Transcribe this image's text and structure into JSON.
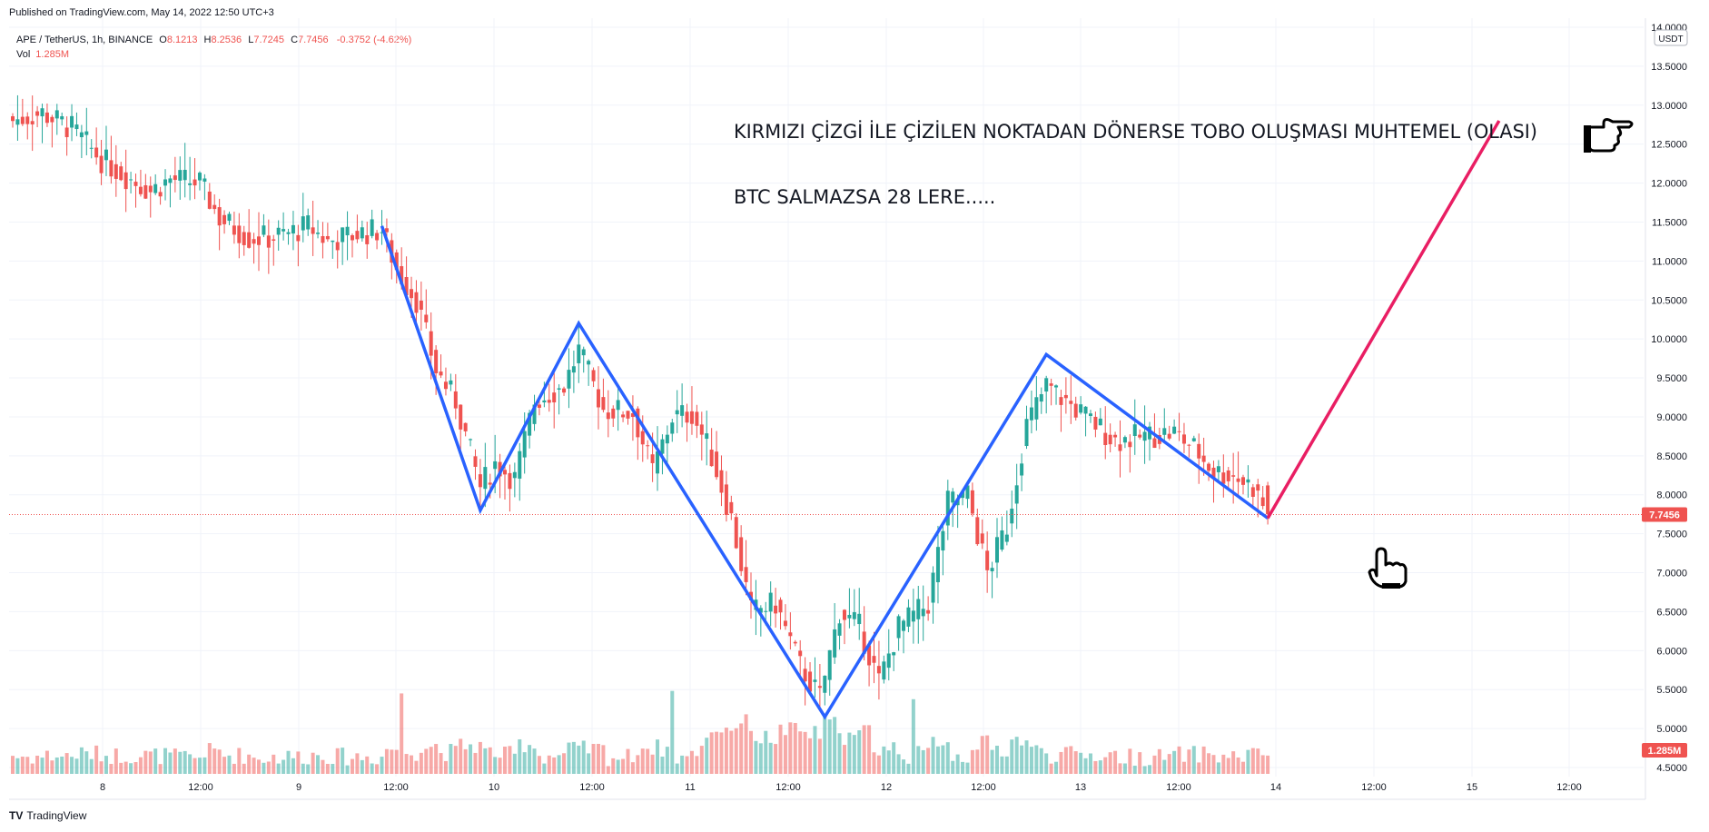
{
  "published": "Published on TradingView.com, May 14, 2022 12:50 UTC+3",
  "legend": {
    "symbol": "APE / TetherUS, 1h, BINANCE",
    "o_label": "O",
    "o": "8.1213",
    "h_label": "H",
    "h": "8.2536",
    "l_label": "L",
    "l": "7.7245",
    "c_label": "C",
    "c": "7.7456",
    "change": "-0.3752 (-4.62%)",
    "vol_label": "Vol",
    "vol": "1.285M"
  },
  "footer": {
    "logo": "TV",
    "brand": "TradingView"
  },
  "colors": {
    "up": "#26a69a",
    "down": "#ef5350",
    "pattern": "#2962ff",
    "projection": "#e91e63"
  },
  "chart_data": {
    "type": "candlestick",
    "currency_label": "USDT",
    "last_price_label": "7.7456",
    "last_volume_label": "1.285M",
    "ylim": [
      4.5,
      14.0
    ],
    "yticks": [
      "4.5000",
      "5.0000",
      "5.5000",
      "6.0000",
      "6.5000",
      "7.0000",
      "7.5000",
      "8.0000",
      "8.5000",
      "9.0000",
      "9.5000",
      "10.0000",
      "10.5000",
      "11.0000",
      "11.5000",
      "12.0000",
      "12.5000",
      "13.0000",
      "13.5000",
      "14.0000"
    ],
    "xticks": [
      "8",
      "12:00",
      "9",
      "12:00",
      "10",
      "12:00",
      "11",
      "12:00",
      "12",
      "12:00",
      "13",
      "12:00",
      "14",
      "12:00",
      "15",
      "12:00"
    ],
    "annotations": [
      "KIRMIZI ÇİZGİ İLE ÇİZİLEN NOKTADAN DÖNERSE TOBO OLUŞMASI MUHTEMEL (OLASI)",
      "BTC SALMAZSA 28 LERE....."
    ],
    "pattern_line": [
      {
        "bar": 75,
        "price": 11.45
      },
      {
        "bar": 95,
        "price": 7.8
      },
      {
        "bar": 115,
        "price": 10.2
      },
      {
        "bar": 165,
        "price": 5.15
      },
      {
        "bar": 210,
        "price": 9.8
      },
      {
        "bar": 255,
        "price": 7.7
      }
    ],
    "projection_line": [
      {
        "bar": 255,
        "price": 7.7
      },
      {
        "bar": 302,
        "price": 12.8
      }
    ],
    "price_path": [
      [
        0,
        12.8
      ],
      [
        6,
        12.9
      ],
      [
        12,
        12.7
      ],
      [
        18,
        12.3
      ],
      [
        24,
        12.05
      ],
      [
        28,
        11.9
      ],
      [
        32,
        12.05
      ],
      [
        38,
        12.0
      ],
      [
        42,
        11.55
      ],
      [
        48,
        11.3
      ],
      [
        52,
        11.3
      ],
      [
        56,
        11.35
      ],
      [
        60,
        11.45
      ],
      [
        64,
        11.25
      ],
      [
        70,
        11.35
      ],
      [
        75,
        11.4
      ],
      [
        78,
        10.9
      ],
      [
        82,
        10.5
      ],
      [
        86,
        9.6
      ],
      [
        90,
        9.2
      ],
      [
        95,
        8.1
      ],
      [
        98,
        8.4
      ],
      [
        102,
        8.2
      ],
      [
        106,
        9.2
      ],
      [
        112,
        9.4
      ],
      [
        115,
        9.85
      ],
      [
        120,
        9.1
      ],
      [
        126,
        9.05
      ],
      [
        130,
        8.3
      ],
      [
        134,
        9.0
      ],
      [
        138,
        9.05
      ],
      [
        142,
        8.5
      ],
      [
        146,
        7.7
      ],
      [
        150,
        6.5
      ],
      [
        155,
        6.6
      ],
      [
        160,
        5.8
      ],
      [
        164,
        5.4
      ],
      [
        168,
        6.5
      ],
      [
        172,
        6.3
      ],
      [
        176,
        5.6
      ],
      [
        180,
        6.3
      ],
      [
        186,
        6.6
      ],
      [
        190,
        7.9
      ],
      [
        194,
        8.0
      ],
      [
        198,
        7.0
      ],
      [
        202,
        7.6
      ],
      [
        206,
        8.9
      ],
      [
        210,
        9.4
      ],
      [
        214,
        9.2
      ],
      [
        220,
        8.9
      ],
      [
        224,
        8.7
      ],
      [
        230,
        8.75
      ],
      [
        236,
        8.8
      ],
      [
        240,
        8.6
      ],
      [
        244,
        8.3
      ],
      [
        248,
        8.25
      ],
      [
        252,
        8.1
      ],
      [
        255,
        7.75
      ]
    ]
  }
}
